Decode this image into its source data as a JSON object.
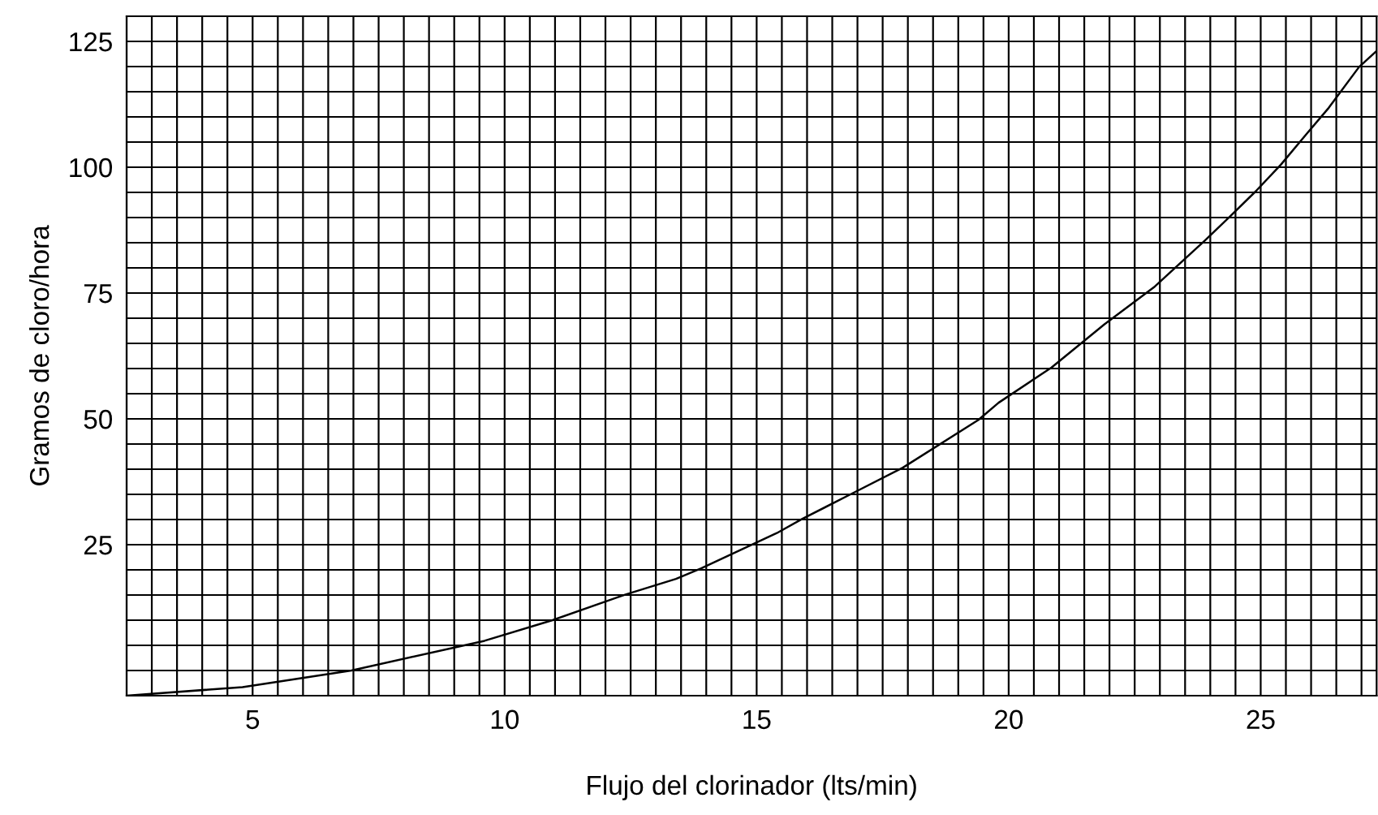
{
  "chart_data": {
    "type": "line",
    "xlabel": "Flujo del clorinador (lts/min)",
    "ylabel": "Gramos de cloro/hora",
    "xlim": [
      2.5,
      27.3
    ],
    "ylim": [
      -5,
      130
    ],
    "xticks": [
      {
        "value": 2.5,
        "label": null
      },
      {
        "value": 3,
        "label": null
      },
      {
        "value": 3.5,
        "label": null
      },
      {
        "value": 4,
        "label": null
      },
      {
        "value": 4.5,
        "label": null
      },
      5,
      {
        "value": 5.5,
        "label": null
      },
      {
        "value": 6,
        "label": null
      },
      {
        "value": 6.5,
        "label": null
      },
      {
        "value": 7,
        "label": null
      },
      {
        "value": 7.5,
        "label": null
      },
      {
        "value": 8,
        "label": null
      },
      {
        "value": 8.5,
        "label": null
      },
      {
        "value": 9,
        "label": null
      },
      {
        "value": 9.5,
        "label": null
      },
      10,
      {
        "value": 10.5,
        "label": null
      },
      {
        "value": 11,
        "label": null
      },
      {
        "value": 11.5,
        "label": null
      },
      {
        "value": 12,
        "label": null
      },
      {
        "value": 12.5,
        "label": null
      },
      {
        "value": 13,
        "label": null
      },
      {
        "value": 13.5,
        "label": null
      },
      {
        "value": 14,
        "label": null
      },
      {
        "value": 14.5,
        "label": null
      },
      15,
      {
        "value": 15.5,
        "label": null
      },
      {
        "value": 16,
        "label": null
      },
      {
        "value": 16.5,
        "label": null
      },
      {
        "value": 17,
        "label": null
      },
      {
        "value": 17.5,
        "label": null
      },
      {
        "value": 18,
        "label": null
      },
      {
        "value": 18.5,
        "label": null
      },
      {
        "value": 19,
        "label": null
      },
      {
        "value": 19.5,
        "label": null
      },
      20,
      {
        "value": 20.5,
        "label": null
      },
      {
        "value": 21,
        "label": null
      },
      {
        "value": 21.5,
        "label": null
      },
      {
        "value": 22,
        "label": null
      },
      {
        "value": 22.5,
        "label": null
      },
      {
        "value": 23,
        "label": null
      },
      {
        "value": 23.5,
        "label": null
      },
      {
        "value": 24,
        "label": null
      },
      {
        "value": 24.5,
        "label": null
      },
      25,
      {
        "value": 25.5,
        "label": null
      },
      {
        "value": 26,
        "label": null
      },
      {
        "value": 26.5,
        "label": null
      },
      {
        "value": 27,
        "label": null
      }
    ],
    "yticks": [
      {
        "value": -5,
        "label": null
      },
      {
        "value": 0,
        "label": null
      },
      {
        "value": 5,
        "label": null
      },
      {
        "value": 10,
        "label": null
      },
      {
        "value": 15,
        "label": null
      },
      {
        "value": 20,
        "label": null
      },
      25,
      {
        "value": 30,
        "label": null
      },
      {
        "value": 35,
        "label": null
      },
      {
        "value": 40,
        "label": null
      },
      {
        "value": 45,
        "label": null
      },
      50,
      {
        "value": 55,
        "label": null
      },
      {
        "value": 60,
        "label": null
      },
      {
        "value": 65,
        "label": null
      },
      {
        "value": 70,
        "label": null
      },
      75,
      {
        "value": 80,
        "label": null
      },
      {
        "value": 85,
        "label": null
      },
      {
        "value": 90,
        "label": null
      },
      {
        "value": 95,
        "label": null
      },
      100,
      {
        "value": 105,
        "label": null
      },
      {
        "value": 110,
        "label": null
      },
      {
        "value": 115,
        "label": null
      },
      {
        "value": 120,
        "label": null
      },
      125,
      {
        "value": 130,
        "label": null
      }
    ],
    "grid": true,
    "series": [
      {
        "color": "#000000",
        "x": [
          2.5,
          4.8,
          6.96,
          9.6,
          10.95,
          12.4,
          13.4,
          13.9,
          15.4,
          15.9,
          16.9,
          17.9,
          19.4,
          19.8,
          20.85,
          21.9,
          22.9,
          23.9,
          24.4,
          24.9,
          25.4,
          25.9,
          26.35,
          26.95,
          27.3
        ],
        "values": [
          -5,
          -3.3,
          0,
          5.9,
          10,
          15.1,
          18.2,
          20.3,
          27.3,
          30.1,
          35.2,
          40.3,
          49.8,
          53.2,
          60.2,
          68.8,
          76.3,
          85.5,
          90.3,
          95.2,
          100.5,
          106.5,
          111.8,
          119.9,
          123.1
        ]
      }
    ]
  }
}
